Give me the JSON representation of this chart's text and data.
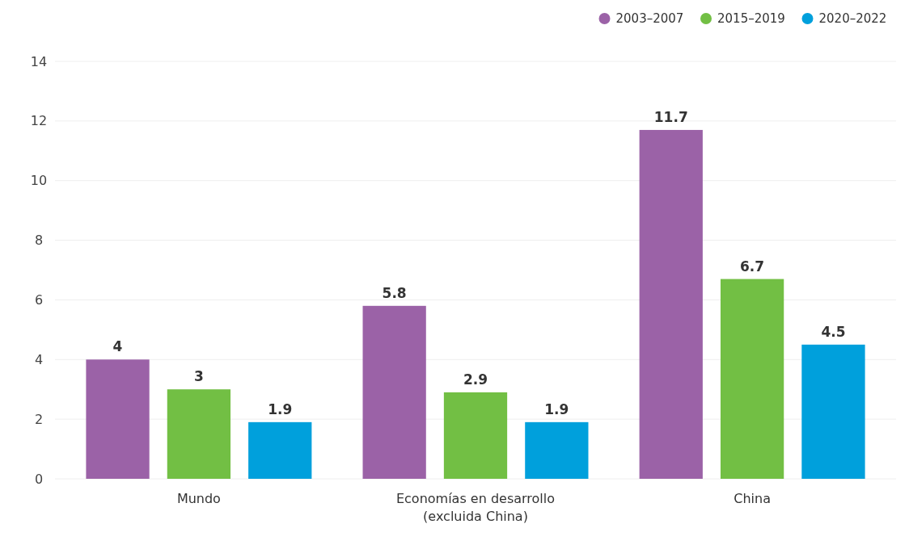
{
  "chart_data": {
    "type": "bar",
    "categories": [
      "Mundo",
      "Economías en desarrollo\n(excluida China)",
      "China"
    ],
    "series": [
      {
        "name": "2003–2007",
        "color": "#9b62a7",
        "values": [
          4,
          5.8,
          11.7
        ]
      },
      {
        "name": "2015–2019",
        "color": "#72bf44",
        "values": [
          3,
          2.9,
          6.7
        ]
      },
      {
        "name": "2020–2022",
        "color": "#00a0dc",
        "values": [
          1.9,
          1.9,
          4.5
        ]
      }
    ],
    "ylim": [
      0,
      14
    ],
    "yticks": [
      0,
      2,
      4,
      6,
      8,
      10,
      12,
      14
    ],
    "grid": "y",
    "legend": "top right",
    "data_labels": true
  }
}
